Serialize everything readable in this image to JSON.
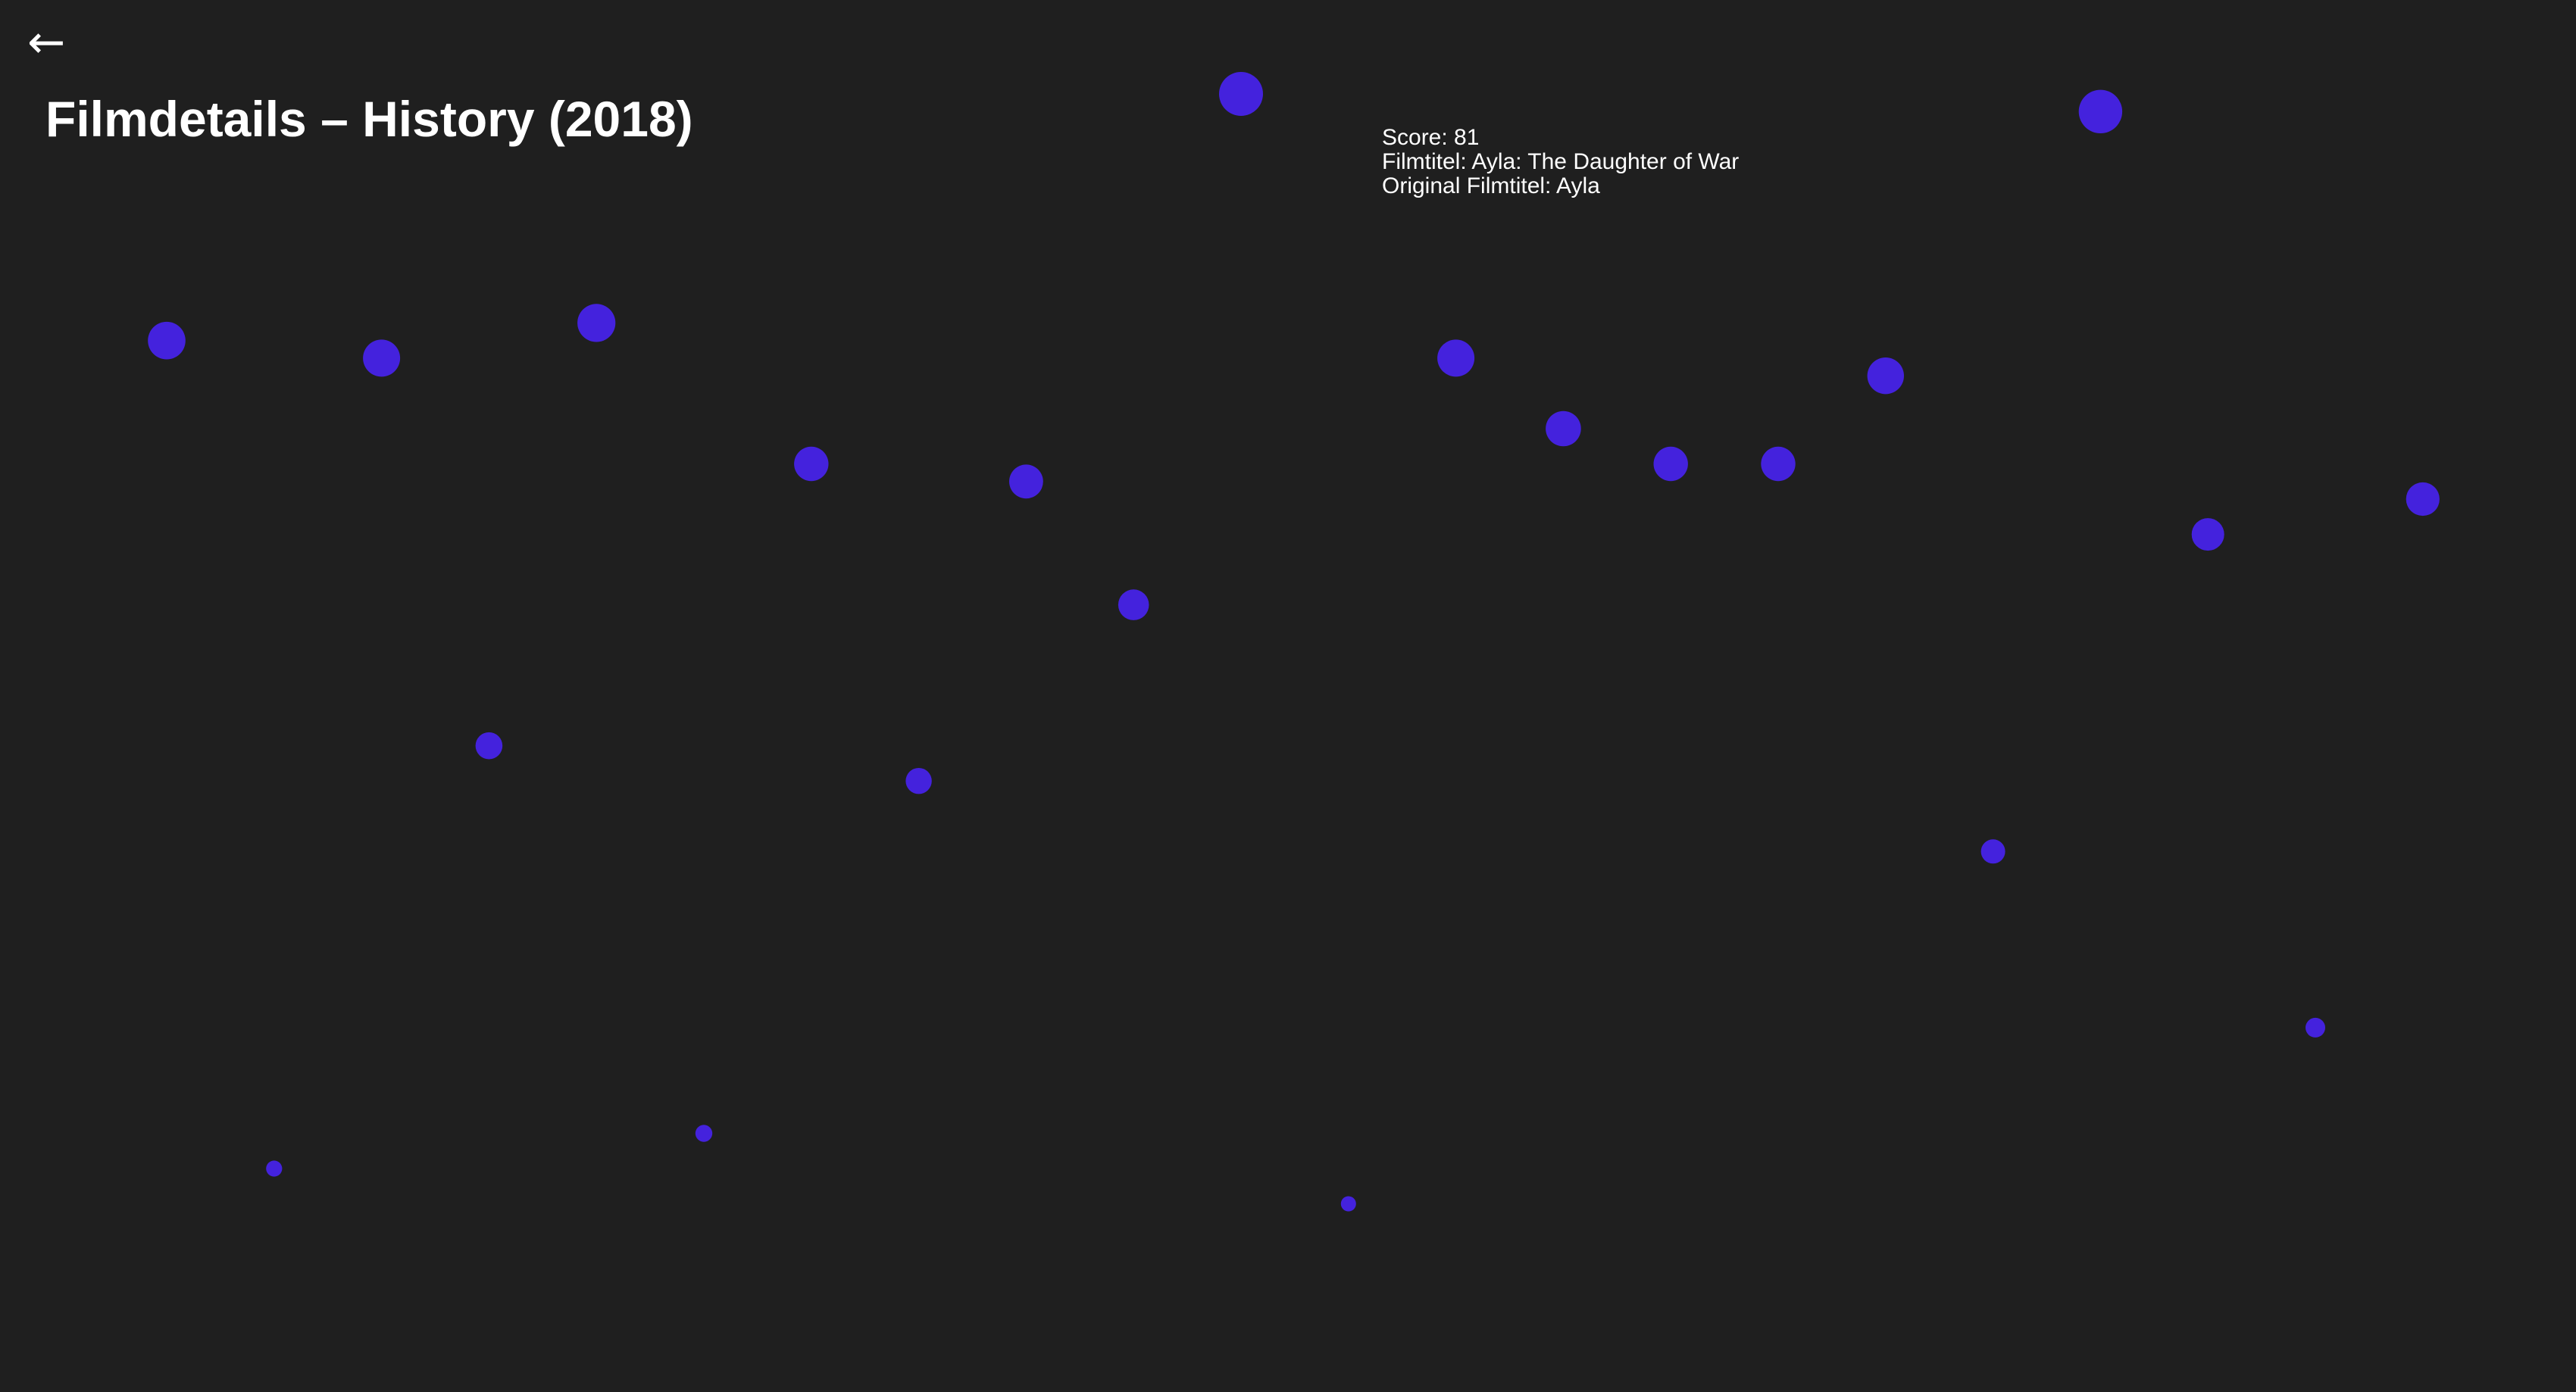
{
  "header": {
    "back_icon": "←",
    "title": "Filmdetails – History (2018)"
  },
  "tooltip": {
    "score_line": "Score: 81",
    "title_line": "Filmtitel: Ayla: The Daughter of War",
    "original_line": "Original Filmtitel: Ayla"
  },
  "dot_color": "#4422dd",
  "films": [
    {
      "score": 67
    },
    {
      "score": 20
    },
    {
      "score": 66
    },
    {
      "score": 44
    },
    {
      "score": 68
    },
    {
      "score": 22
    },
    {
      "score": 60
    },
    {
      "score": 42
    },
    {
      "score": 59
    },
    {
      "score": 52
    },
    {
      "score": 81
    },
    {
      "score": 18
    },
    {
      "score": 66
    },
    {
      "score": 62
    },
    {
      "score": 60
    },
    {
      "score": 60
    },
    {
      "score": 65
    },
    {
      "score": 38
    },
    {
      "score": 80
    },
    {
      "score": 56
    },
    {
      "score": 28
    },
    {
      "score": 58
    }
  ]
}
